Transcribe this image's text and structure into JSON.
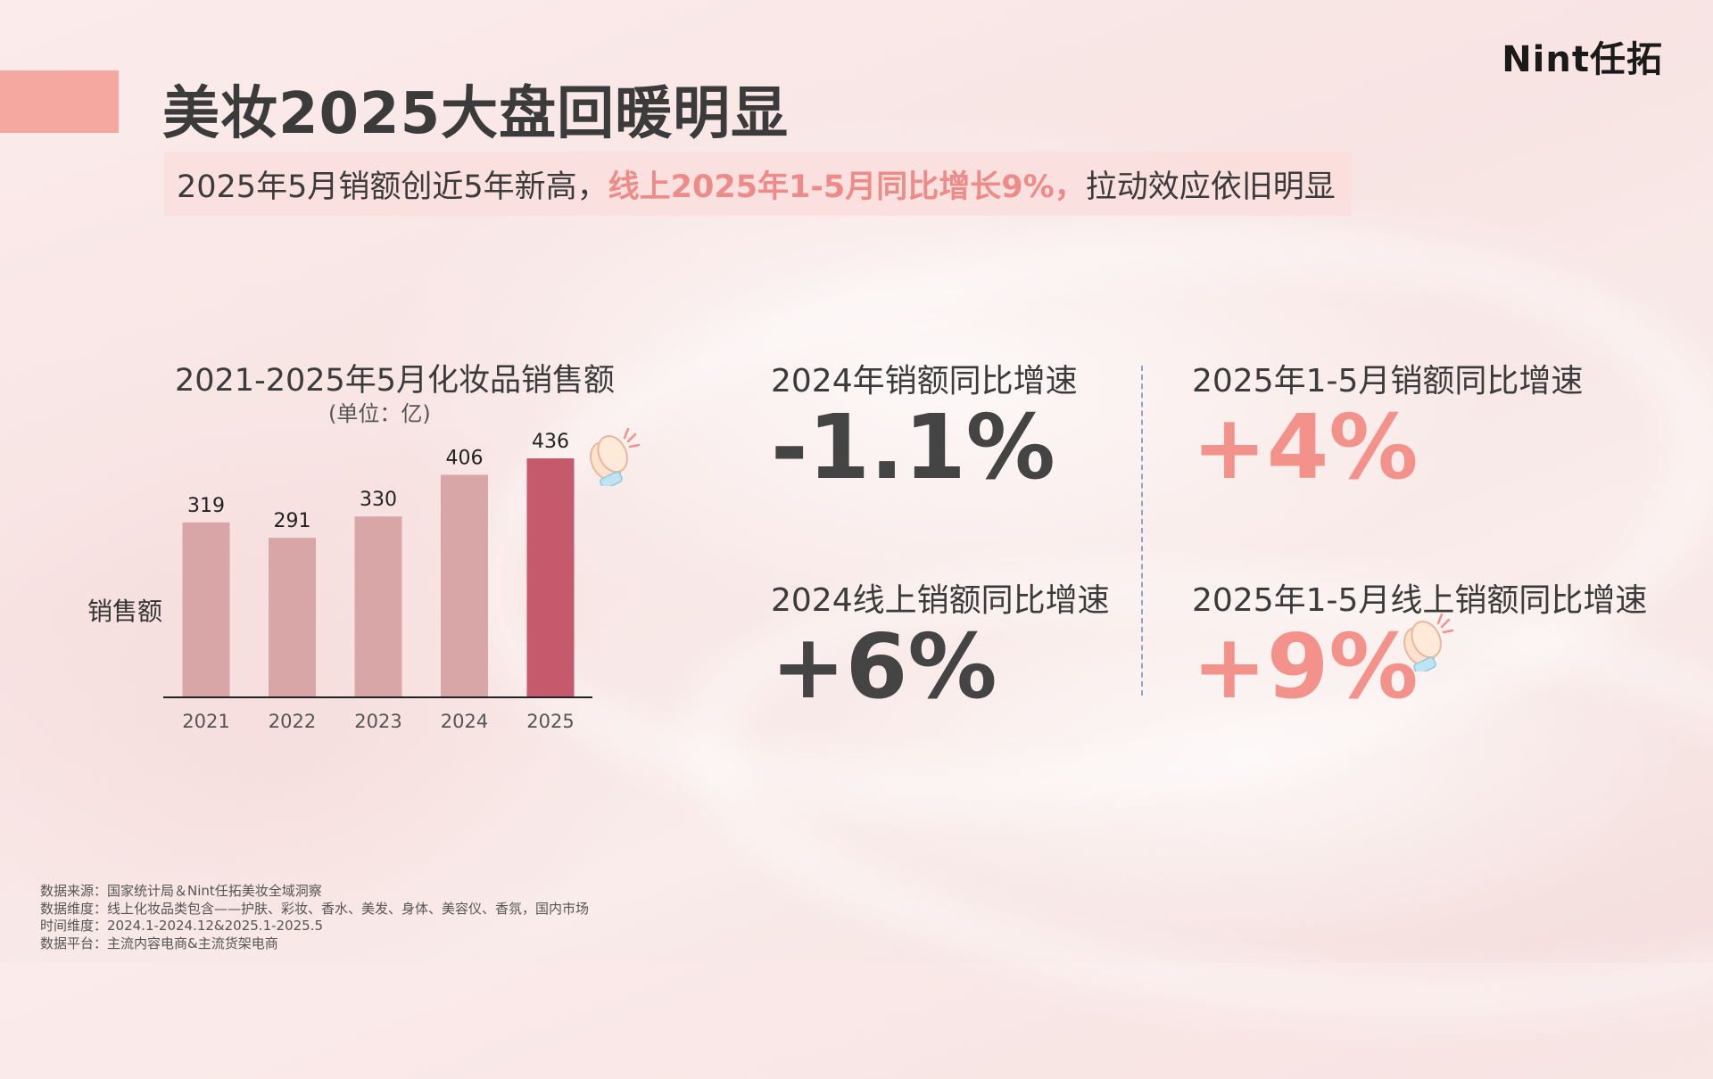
{
  "logo": "Nint任拓",
  "title": "美妆2025大盘回暖明显",
  "subtitle": {
    "part1": "2025年5月销额创近5年新高，",
    "highlight": "线上2025年1-5月同比增长9%，",
    "part2": "拉动效应依旧明显"
  },
  "chart_data": {
    "type": "bar",
    "title": "2021-2025年5月化妆品销售额",
    "unit": "(单位：亿)",
    "ylabel": "销售额",
    "xlabel": "",
    "categories": [
      "2021",
      "2022",
      "2023",
      "2024",
      "2025"
    ],
    "values": [
      319,
      291,
      330,
      406,
      436
    ],
    "ylim": [
      0,
      450
    ],
    "grid": false,
    "colors": {
      "default": "#d9a6a8",
      "highlight": "#c45a6b"
    },
    "highlight_index": 4
  },
  "stats": [
    {
      "label": "2024年销额同比增速",
      "value": "-1.1%",
      "color": "dark"
    },
    {
      "label": "2025年1-5月销额同比增速",
      "value": "+4%",
      "color": "pink"
    },
    {
      "label": "2024线上销额同比增速",
      "value": "+6%",
      "color": "dark"
    },
    {
      "label": "2025年1-5月线上销额同比增速",
      "value": "+9%",
      "color": "pink"
    }
  ],
  "icons": [
    "clapping-hands-icon"
  ],
  "footnotes": [
    "数据来源：国家统计局＆Nint任拓美妆全域洞察",
    "数据维度：线上化妆品类包含——护肤、彩妆、香水、美发、身体、美容仪、香氛，国内市场",
    "时间维度：2024.1-2024.12&2025.1-2025.5",
    "数据平台：主流内容电商&主流货架电商"
  ]
}
